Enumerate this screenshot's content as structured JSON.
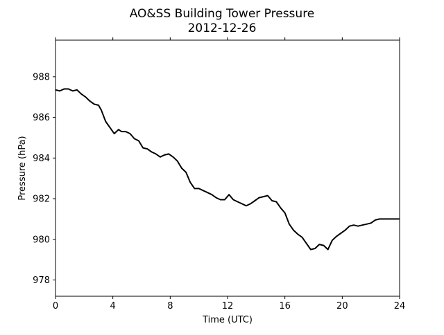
{
  "chart_data": {
    "type": "line",
    "title": "AO&SS Building Tower Pressure",
    "subtitle": "2012-12-26",
    "xlabel": "Time (UTC)",
    "ylabel": "Pressure (hPa)",
    "xlim": [
      0,
      24
    ],
    "ylim": [
      977.2,
      989.8
    ],
    "xticks": [
      0,
      4,
      8,
      12,
      16,
      20,
      24
    ],
    "yticks": [
      978,
      980,
      982,
      984,
      986,
      988
    ],
    "grid": false,
    "legend": "none",
    "line_color": "#000000",
    "series": [
      {
        "x": [
          0,
          0.3,
          0.6,
          0.9,
          1.2,
          1.5,
          1.8,
          2.1,
          2.4,
          2.7,
          3.0,
          3.2,
          3.5,
          3.8,
          4.1,
          4.4,
          4.6,
          4.9,
          5.2,
          5.5,
          5.8,
          6.1,
          6.4,
          6.7,
          7.0,
          7.3,
          7.6,
          7.9,
          8.2,
          8.5,
          8.8,
          9.1,
          9.4,
          9.7,
          10.0,
          10.3,
          10.6,
          10.9,
          11.2,
          11.5,
          11.8,
          12.1,
          12.4,
          12.7,
          13.0,
          13.3,
          13.6,
          13.9,
          14.2,
          14.5,
          14.8,
          15.1,
          15.4,
          15.7,
          16.0,
          16.3,
          16.6,
          16.9,
          17.2,
          17.5,
          17.8,
          18.1,
          18.4,
          18.7,
          19.0,
          19.3,
          19.6,
          19.9,
          20.2,
          20.5,
          20.8,
          21.1,
          21.4,
          21.7,
          22.0,
          22.3,
          22.6,
          22.9,
          23.2,
          23.5,
          23.8,
          24.0
        ],
        "y": [
          987.35,
          987.3,
          987.4,
          987.4,
          987.3,
          987.35,
          987.15,
          987.0,
          986.8,
          986.65,
          986.6,
          986.35,
          985.8,
          985.5,
          985.2,
          985.4,
          985.3,
          985.3,
          985.2,
          984.95,
          984.85,
          984.5,
          984.45,
          984.3,
          984.2,
          984.05,
          984.15,
          984.2,
          984.05,
          983.85,
          983.5,
          983.3,
          982.8,
          982.5,
          982.5,
          982.4,
          982.3,
          982.2,
          982.05,
          981.95,
          981.95,
          982.2,
          981.95,
          981.85,
          981.75,
          981.65,
          981.75,
          981.9,
          982.05,
          982.1,
          982.15,
          981.9,
          981.85,
          981.55,
          981.3,
          980.75,
          980.45,
          980.25,
          980.1,
          979.8,
          979.5,
          979.55,
          979.75,
          979.7,
          979.5,
          979.95,
          980.15,
          980.3,
          980.45,
          980.65,
          980.7,
          980.65,
          980.7,
          980.75,
          980.8,
          980.95,
          981.0,
          981.0,
          981.0,
          981.0,
          981.0,
          981.0
        ]
      }
    ]
  }
}
